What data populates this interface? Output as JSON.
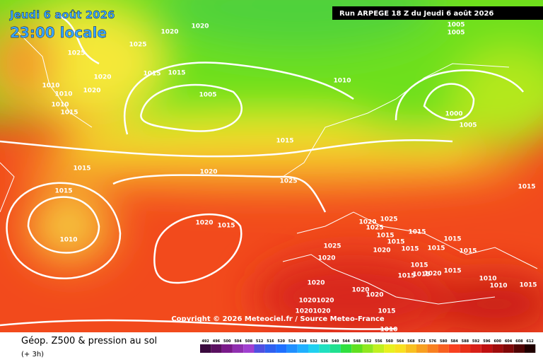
{
  "header": {
    "date": "Jeudi 6 août 2026",
    "time": "23:00 locale",
    "run": "Run ARPEGE 18 Z du Jeudi 6 août 2026"
  },
  "copyright": "Copyright © 2026 Meteociel.fr / Source Meteo-France",
  "footer": {
    "title": "Géop. Z500 & pression au sol",
    "subtitle": "(+ 3h)"
  },
  "legend": {
    "values": [
      "492",
      "496",
      "500",
      "504",
      "508",
      "512",
      "516",
      "520",
      "524",
      "528",
      "532",
      "536",
      "540",
      "544",
      "548",
      "552",
      "556",
      "560",
      "564",
      "568",
      "572",
      "576",
      "580",
      "584",
      "588",
      "592",
      "596",
      "600",
      "604",
      "608",
      "612"
    ]
  },
  "isobar_labels": [
    "1020",
    "1020",
    "1025",
    "1025",
    "1020",
    "1015",
    "1015",
    "1020",
    "1010",
    "1010",
    "1010",
    "1015",
    "1005",
    "1010",
    "1005",
    "1005",
    "1000",
    "1005",
    "1015",
    "1015",
    "1020",
    "1025",
    "1015",
    "1010",
    "1020",
    "1015",
    "1015",
    "1025",
    "1020",
    "1025",
    "1015",
    "1015",
    "1015",
    "1015",
    "1015",
    "1015",
    "1015",
    "1020",
    "1025",
    "1020",
    "1015",
    "1015",
    "1015",
    "1015",
    "1020",
    "1010",
    "1010",
    "1015",
    "1020",
    "1020",
    "1020",
    "1020",
    "1020",
    "1020",
    "1020",
    "1015",
    "1010"
  ]
}
